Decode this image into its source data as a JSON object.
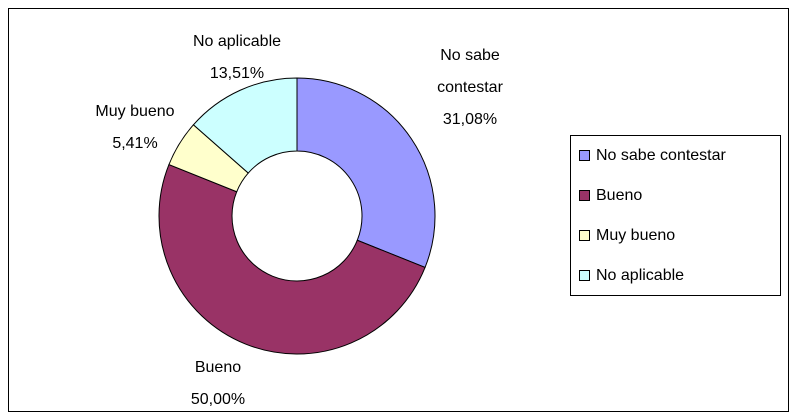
{
  "chart_data": {
    "type": "donut",
    "categories": [
      "No sabe contestar",
      "Bueno",
      "Muy bueno",
      "No aplicable"
    ],
    "values": [
      31.08,
      50.0,
      5.41,
      13.51
    ],
    "value_labels": [
      "31,08%",
      "50,00%",
      "5,41%",
      "13,51%"
    ],
    "colors": [
      "#9999ff",
      "#993366",
      "#ffffcc",
      "#ccffff"
    ],
    "legend": "right"
  }
}
